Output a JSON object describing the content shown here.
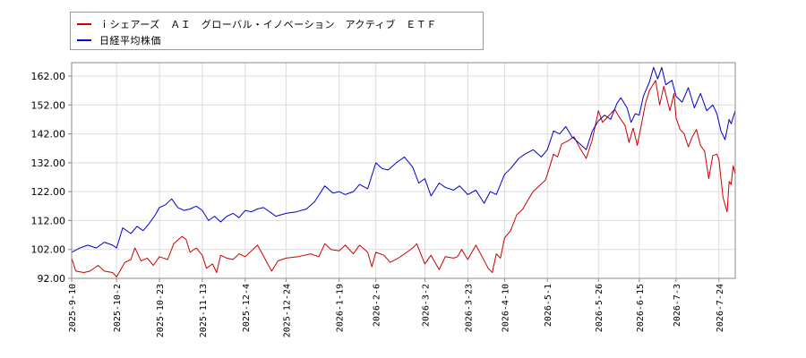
{
  "chart_data": {
    "type": "line",
    "title": "",
    "xlabel": "",
    "ylabel": "",
    "ylim": [
      92,
      166
    ],
    "yticks": [
      "162.00",
      "152.00",
      "142.00",
      "132.00",
      "122.00",
      "112.00",
      "102.00",
      "92.00"
    ],
    "ytick_values": [
      162,
      152,
      142,
      132,
      122,
      112,
      102,
      92
    ],
    "xticks": [
      "2025-9-10",
      "2025-10-2",
      "2025-10-23",
      "2025-11-13",
      "2025-12-4",
      "2025-12-24",
      "2026-1-19",
      "2026-2-6",
      "2026-3-2",
      "2026-3-23",
      "2026-4-10",
      "2026-5-1",
      "2026-5-26",
      "2026-6-15",
      "2026-7-3",
      "2026-7-24"
    ],
    "grid": true,
    "legend_placement": "top-left",
    "x_end": "2026-8-1",
    "series": [
      {
        "name": "ｉシェアーズ　ＡＩ　グローバル・イノベーション　アクティブ　ＥＴＦ",
        "color": "#cc0000",
        "points": [
          [
            "2025-9-10",
            99
          ],
          [
            "2025-9-12",
            94.5
          ],
          [
            "2025-9-16",
            94
          ],
          [
            "2025-9-19",
            94.5
          ],
          [
            "2025-9-23",
            96.5
          ],
          [
            "2025-9-26",
            94.5
          ],
          [
            "2025-9-30",
            94
          ],
          [
            "2025-10-2",
            92.5
          ],
          [
            "2025-10-6",
            97.5
          ],
          [
            "2025-10-9",
            98.5
          ],
          [
            "2025-10-11",
            102.5
          ],
          [
            "2025-10-14",
            98
          ],
          [
            "2025-10-17",
            99
          ],
          [
            "2025-10-20",
            96.5
          ],
          [
            "2025-10-23",
            99.5
          ],
          [
            "2025-10-27",
            98.5
          ],
          [
            "2025-10-30",
            104
          ],
          [
            "2025-11-3",
            106.5
          ],
          [
            "2025-11-5",
            105.5
          ],
          [
            "2025-11-7",
            101
          ],
          [
            "2025-11-10",
            102.5
          ],
          [
            "2025-11-13",
            100
          ],
          [
            "2025-11-15",
            95.5
          ],
          [
            "2025-11-18",
            97
          ],
          [
            "2025-11-20",
            94
          ],
          [
            "2025-11-22",
            100
          ],
          [
            "2025-11-25",
            99
          ],
          [
            "2025-11-28",
            98.5
          ],
          [
            "2025-12-1",
            100.5
          ],
          [
            "2025-12-4",
            99.5
          ],
          [
            "2025-12-7",
            101.5
          ],
          [
            "2025-12-10",
            103.5
          ],
          [
            "2025-12-12",
            101
          ],
          [
            "2025-12-15",
            97
          ],
          [
            "2025-12-17",
            94.5
          ],
          [
            "2025-12-20",
            98
          ],
          [
            "2025-12-24",
            99
          ],
          [
            "2025-12-30",
            99.5
          ],
          [
            "2026-1-5",
            100.5
          ],
          [
            "2026-1-9",
            99.5
          ],
          [
            "2026-1-12",
            104
          ],
          [
            "2026-1-15",
            102
          ],
          [
            "2026-1-19",
            101.5
          ],
          [
            "2026-1-22",
            103.5
          ],
          [
            "2026-1-26",
            100.5
          ],
          [
            "2026-1-29",
            103.5
          ],
          [
            "2026-2-2",
            101
          ],
          [
            "2026-2-4",
            96
          ],
          [
            "2026-2-6",
            101
          ],
          [
            "2026-2-10",
            100
          ],
          [
            "2026-2-13",
            97.5
          ],
          [
            "2026-2-17",
            99
          ],
          [
            "2026-2-20",
            100.5
          ],
          [
            "2026-2-24",
            102.5
          ],
          [
            "2026-2-26",
            104
          ],
          [
            "2026-3-2",
            97
          ],
          [
            "2026-3-5",
            100
          ],
          [
            "2026-3-9",
            95
          ],
          [
            "2026-3-12",
            99.5
          ],
          [
            "2026-3-16",
            99
          ],
          [
            "2026-3-18",
            99.5
          ],
          [
            "2026-3-20",
            102
          ],
          [
            "2026-3-23",
            98.5
          ],
          [
            "2026-3-27",
            103.5
          ],
          [
            "2026-3-30",
            99.5
          ],
          [
            "2026-4-2",
            95.5
          ],
          [
            "2026-4-4",
            94
          ],
          [
            "2026-4-6",
            100.5
          ],
          [
            "2026-4-8",
            99
          ],
          [
            "2026-4-10",
            106
          ],
          [
            "2026-4-13",
            108.5
          ],
          [
            "2026-4-16",
            114
          ],
          [
            "2026-4-19",
            116
          ],
          [
            "2026-4-21",
            118.5
          ],
          [
            "2026-4-24",
            122
          ],
          [
            "2026-4-27",
            124
          ],
          [
            "2026-4-30",
            126
          ],
          [
            "2026-5-1",
            128
          ],
          [
            "2026-5-4",
            135
          ],
          [
            "2026-5-6",
            134
          ],
          [
            "2026-5-8",
            138.5
          ],
          [
            "2026-5-11",
            139.5
          ],
          [
            "2026-5-14",
            141
          ],
          [
            "2026-5-17",
            137
          ],
          [
            "2026-5-20",
            133.5
          ],
          [
            "2026-5-23",
            140
          ],
          [
            "2026-5-26",
            150
          ],
          [
            "2026-5-28",
            146
          ],
          [
            "2026-6-1",
            149
          ],
          [
            "2026-6-3",
            150.5
          ],
          [
            "2026-6-5",
            148
          ],
          [
            "2026-6-8",
            145
          ],
          [
            "2026-6-10",
            139
          ],
          [
            "2026-6-12",
            144
          ],
          [
            "2026-6-14",
            138
          ],
          [
            "2026-6-16",
            145
          ],
          [
            "2026-6-18",
            152.5
          ],
          [
            "2026-6-20",
            157
          ],
          [
            "2026-6-23",
            160.5
          ],
          [
            "2026-6-25",
            152
          ],
          [
            "2026-6-27",
            158.5
          ],
          [
            "2026-6-30",
            150
          ],
          [
            "2026-7-2",
            156
          ],
          [
            "2026-7-3",
            147.5
          ],
          [
            "2026-7-5",
            143.5
          ],
          [
            "2026-7-7",
            142
          ],
          [
            "2026-7-9",
            137.5
          ],
          [
            "2026-7-11",
            141
          ],
          [
            "2026-7-13",
            143.5
          ],
          [
            "2026-7-15",
            138
          ],
          [
            "2026-7-17",
            136
          ],
          [
            "2026-7-19",
            126.5
          ],
          [
            "2026-7-21",
            134.5
          ],
          [
            "2026-7-23",
            135
          ],
          [
            "2026-7-24",
            133
          ],
          [
            "2026-7-26",
            120
          ],
          [
            "2026-7-28",
            115
          ],
          [
            "2026-7-29",
            125.5
          ],
          [
            "2026-7-30",
            124.5
          ],
          [
            "2026-7-31",
            131
          ],
          [
            "2026-8-1",
            128
          ]
        ]
      },
      {
        "name": "日経平均株価",
        "color": "#0000cc",
        "points": [
          [
            "2025-9-10",
            101
          ],
          [
            "2025-9-14",
            102.5
          ],
          [
            "2025-9-18",
            103.5
          ],
          [
            "2025-9-22",
            102.5
          ],
          [
            "2025-9-26",
            104.5
          ],
          [
            "2025-9-30",
            103.5
          ],
          [
            "2025-10-2",
            102.5
          ],
          [
            "2025-10-5",
            109.5
          ],
          [
            "2025-10-9",
            107.5
          ],
          [
            "2025-10-12",
            110
          ],
          [
            "2025-10-15",
            108.5
          ],
          [
            "2025-10-18",
            111
          ],
          [
            "2025-10-21",
            114
          ],
          [
            "2025-10-23",
            116.5
          ],
          [
            "2025-10-26",
            117.5
          ],
          [
            "2025-10-29",
            119.5
          ],
          [
            "2025-11-1",
            116.5
          ],
          [
            "2025-11-4",
            115.5
          ],
          [
            "2025-11-7",
            116
          ],
          [
            "2025-11-10",
            117
          ],
          [
            "2025-11-13",
            115.5
          ],
          [
            "2025-11-16",
            112
          ],
          [
            "2025-11-19",
            113.5
          ],
          [
            "2025-11-22",
            111.5
          ],
          [
            "2025-11-25",
            113.5
          ],
          [
            "2025-11-28",
            114.5
          ],
          [
            "2025-12-1",
            113
          ],
          [
            "2025-12-4",
            115.5
          ],
          [
            "2025-12-7",
            115
          ],
          [
            "2025-12-10",
            116
          ],
          [
            "2025-12-13",
            116.5
          ],
          [
            "2025-12-16",
            115
          ],
          [
            "2025-12-19",
            113.5
          ],
          [
            "2025-12-24",
            114.5
          ],
          [
            "2025-12-29",
            115
          ],
          [
            "2026-1-3",
            116
          ],
          [
            "2026-1-7",
            118.5
          ],
          [
            "2026-1-12",
            124
          ],
          [
            "2026-1-16",
            121.5
          ],
          [
            "2026-1-19",
            122
          ],
          [
            "2026-1-22",
            121
          ],
          [
            "2026-1-26",
            122
          ],
          [
            "2026-1-29",
            124.5
          ],
          [
            "2026-2-2",
            123
          ],
          [
            "2026-2-6",
            132
          ],
          [
            "2026-2-9",
            130
          ],
          [
            "2026-2-12",
            129.5
          ],
          [
            "2026-2-16",
            132
          ],
          [
            "2026-2-20",
            134
          ],
          [
            "2026-2-24",
            130.5
          ],
          [
            "2026-2-27",
            125
          ],
          [
            "2026-3-2",
            126.5
          ],
          [
            "2026-3-5",
            120.5
          ],
          [
            "2026-3-9",
            125
          ],
          [
            "2026-3-12",
            123.5
          ],
          [
            "2026-3-16",
            122.5
          ],
          [
            "2026-3-19",
            124
          ],
          [
            "2026-3-23",
            121
          ],
          [
            "2026-3-27",
            122.5
          ],
          [
            "2026-3-31",
            118
          ],
          [
            "2026-4-3",
            122
          ],
          [
            "2026-4-6",
            121
          ],
          [
            "2026-4-10",
            128
          ],
          [
            "2026-4-13",
            130
          ],
          [
            "2026-4-17",
            133.5
          ],
          [
            "2026-4-20",
            135
          ],
          [
            "2026-4-24",
            136.5
          ],
          [
            "2026-4-28",
            134
          ],
          [
            "2026-5-1",
            136.5
          ],
          [
            "2026-5-4",
            143
          ],
          [
            "2026-5-7",
            142
          ],
          [
            "2026-5-10",
            144.5
          ],
          [
            "2026-5-13",
            141
          ],
          [
            "2026-5-17",
            138.5
          ],
          [
            "2026-5-20",
            136.5
          ],
          [
            "2026-5-23",
            143
          ],
          [
            "2026-5-26",
            146.5
          ],
          [
            "2026-5-29",
            148.5
          ],
          [
            "2026-6-1",
            147
          ],
          [
            "2026-6-4",
            152.5
          ],
          [
            "2026-6-6",
            154.5
          ],
          [
            "2026-6-9",
            151
          ],
          [
            "2026-6-11",
            146
          ],
          [
            "2026-6-13",
            149
          ],
          [
            "2026-6-15",
            148.5
          ],
          [
            "2026-6-17",
            155
          ],
          [
            "2026-6-20",
            160
          ],
          [
            "2026-6-22",
            165
          ],
          [
            "2026-6-24",
            161
          ],
          [
            "2026-6-26",
            165
          ],
          [
            "2026-6-28",
            159
          ],
          [
            "2026-7-1",
            160.5
          ],
          [
            "2026-7-3",
            155
          ],
          [
            "2026-7-6",
            153
          ],
          [
            "2026-7-9",
            158
          ],
          [
            "2026-7-12",
            151
          ],
          [
            "2026-7-15",
            156
          ],
          [
            "2026-7-18",
            150
          ],
          [
            "2026-7-21",
            152
          ],
          [
            "2026-7-23",
            149
          ],
          [
            "2026-7-25",
            143
          ],
          [
            "2026-7-27",
            140
          ],
          [
            "2026-7-29",
            147
          ],
          [
            "2026-7-30",
            145.5
          ],
          [
            "2026-8-1",
            150
          ]
        ]
      }
    ]
  }
}
